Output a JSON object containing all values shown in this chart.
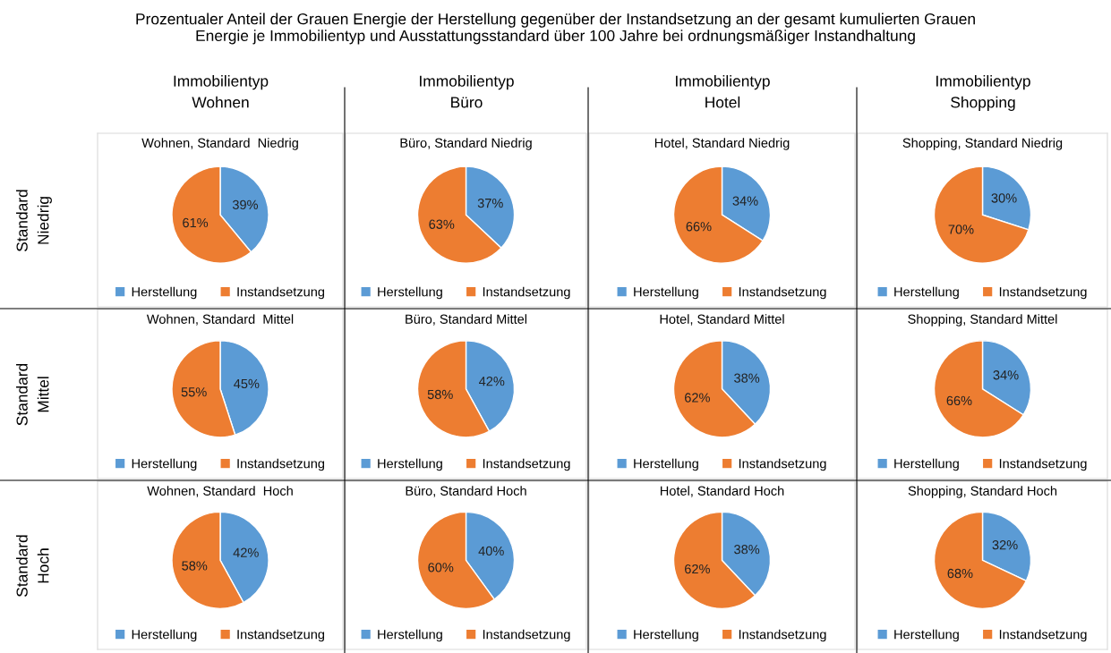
{
  "chart_data": [
    {
      "type": "other",
      "title": "Prozentualer Anteil der Grauen Energie der Herstellung gegenüber der Instandsetzung an der gesamt kumulierten Grauen\nEnergie je Immobilientyp und Ausstattungsstandard über 100 Jahre bei ordnungsmäßiger Instandhaltung",
      "annotations": [
        "Immobilientyp\nWohnen",
        "Immobilientyp\nBüro",
        "Immobilientyp\nHotel",
        "Immobilientyp\nShopping",
        "Standard\nNiedrig",
        "Standard\nMittel",
        "Standard\nHoch"
      ]
    },
    {
      "type": "pie",
      "title": "Wohnen, Standard  Niedrig",
      "categories": [
        "Herstellung",
        "Instandsetzung"
      ],
      "values": [
        39,
        61
      ],
      "colors": [
        "#5b9bd5",
        "#ed7d31"
      ],
      "value_labels": [
        "39%",
        "61%"
      ],
      "legend": "bottom"
    },
    {
      "type": "pie",
      "title": "Büro, Standard Niedrig",
      "categories": [
        "Herstellung",
        "Instandsetzung"
      ],
      "values": [
        37,
        63
      ],
      "colors": [
        "#5b9bd5",
        "#ed7d31"
      ],
      "value_labels": [
        "37%",
        "63%"
      ],
      "legend": "bottom"
    },
    {
      "type": "pie",
      "title": "Hotel, Standard Niedrig",
      "categories": [
        "Herstellung",
        "Instandsetzung"
      ],
      "values": [
        34,
        66
      ],
      "colors": [
        "#5b9bd5",
        "#ed7d31"
      ],
      "value_labels": [
        "34%",
        "66%"
      ],
      "legend": "bottom"
    },
    {
      "type": "pie",
      "title": "Shopping, Standard Niedrig",
      "categories": [
        "Herstellung",
        "Instandsetzung"
      ],
      "values": [
        30,
        70
      ],
      "colors": [
        "#5b9bd5",
        "#ed7d31"
      ],
      "value_labels": [
        "30%",
        "70%"
      ],
      "legend": "bottom"
    },
    {
      "type": "pie",
      "title": "Wohnen, Standard  Mittel",
      "categories": [
        "Herstellung",
        "Instandsetzung"
      ],
      "values": [
        45,
        55
      ],
      "colors": [
        "#5b9bd5",
        "#ed7d31"
      ],
      "value_labels": [
        "45%",
        "55%"
      ],
      "legend": "bottom"
    },
    {
      "type": "pie",
      "title": "Büro, Standard Mittel",
      "categories": [
        "Herstellung",
        "Instandsetzung"
      ],
      "values": [
        42,
        58
      ],
      "colors": [
        "#5b9bd5",
        "#ed7d31"
      ],
      "value_labels": [
        "42%",
        "58%"
      ],
      "legend": "bottom"
    },
    {
      "type": "pie",
      "title": "Hotel, Standard Mittel",
      "categories": [
        "Herstellung",
        "Instandsetzung"
      ],
      "values": [
        38,
        62
      ],
      "colors": [
        "#5b9bd5",
        "#ed7d31"
      ],
      "value_labels": [
        "38%",
        "62%"
      ],
      "legend": "bottom"
    },
    {
      "type": "pie",
      "title": "Shopping, Standard Mittel",
      "categories": [
        "Herstellung",
        "Instandsetzung"
      ],
      "values": [
        34,
        66
      ],
      "colors": [
        "#5b9bd5",
        "#ed7d31"
      ],
      "value_labels": [
        "34%",
        "66%"
      ],
      "legend": "bottom"
    },
    {
      "type": "pie",
      "title": "Wohnen, Standard  Hoch",
      "categories": [
        "Herstellung",
        "Instandsetzung"
      ],
      "values": [
        42,
        58
      ],
      "colors": [
        "#5b9bd5",
        "#ed7d31"
      ],
      "value_labels": [
        "42%",
        "58%"
      ],
      "legend": "bottom"
    },
    {
      "type": "pie",
      "title": "Büro, Standard Hoch",
      "categories": [
        "Herstellung",
        "Instandsetzung"
      ],
      "values": [
        40,
        60
      ],
      "colors": [
        "#5b9bd5",
        "#ed7d31"
      ],
      "value_labels": [
        "40%",
        "60%"
      ],
      "legend": "bottom"
    },
    {
      "type": "pie",
      "title": "Hotel, Standard Hoch",
      "categories": [
        "Herstellung",
        "Instandsetzung"
      ],
      "values": [
        38,
        62
      ],
      "colors": [
        "#5b9bd5",
        "#ed7d31"
      ],
      "value_labels": [
        "38%",
        "62%"
      ],
      "legend": "bottom"
    },
    {
      "type": "pie",
      "title": "Shopping, Standard Hoch",
      "categories": [
        "Herstellung",
        "Instandsetzung"
      ],
      "values": [
        32,
        68
      ],
      "colors": [
        "#5b9bd5",
        "#ed7d31"
      ],
      "value_labels": [
        "32%",
        "68%"
      ],
      "legend": "bottom"
    }
  ]
}
